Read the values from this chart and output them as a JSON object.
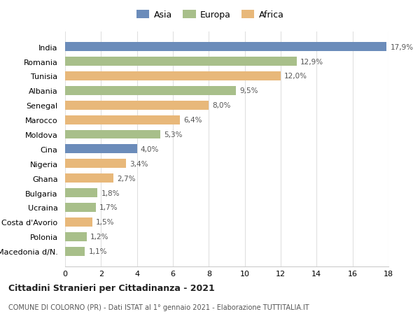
{
  "countries": [
    "Macedonia d/N.",
    "Polonia",
    "Costa d'Avorio",
    "Ucraina",
    "Bulgaria",
    "Ghana",
    "Nigeria",
    "Cina",
    "Moldova",
    "Marocco",
    "Senegal",
    "Albania",
    "Tunisia",
    "Romania",
    "India"
  ],
  "values": [
    1.1,
    1.2,
    1.5,
    1.7,
    1.8,
    2.7,
    3.4,
    4.0,
    5.3,
    6.4,
    8.0,
    9.5,
    12.0,
    12.9,
    17.9
  ],
  "labels": [
    "1,1%",
    "1,2%",
    "1,5%",
    "1,7%",
    "1,8%",
    "2,7%",
    "3,4%",
    "4,0%",
    "5,3%",
    "6,4%",
    "8,0%",
    "9,5%",
    "12,0%",
    "12,9%",
    "17,9%"
  ],
  "continents": [
    "Europa",
    "Europa",
    "Africa",
    "Europa",
    "Europa",
    "Africa",
    "Africa",
    "Asia",
    "Europa",
    "Africa",
    "Africa",
    "Europa",
    "Africa",
    "Europa",
    "Asia"
  ],
  "colors": {
    "Asia": "#6b8cba",
    "Europa": "#a8bf8a",
    "Africa": "#e8b87a"
  },
  "legend_labels": [
    "Asia",
    "Europa",
    "Africa"
  ],
  "title_main": "Cittadini Stranieri per Cittadinanza - 2021",
  "title_sub": "COMUNE DI COLORNO (PR) - Dati ISTAT al 1° gennaio 2021 - Elaborazione TUTTITALIA.IT",
  "xlim": [
    0,
    18
  ],
  "xticks": [
    0,
    2,
    4,
    6,
    8,
    10,
    12,
    14,
    16,
    18
  ],
  "background_color": "#ffffff",
  "grid_color": "#e0e0e0"
}
